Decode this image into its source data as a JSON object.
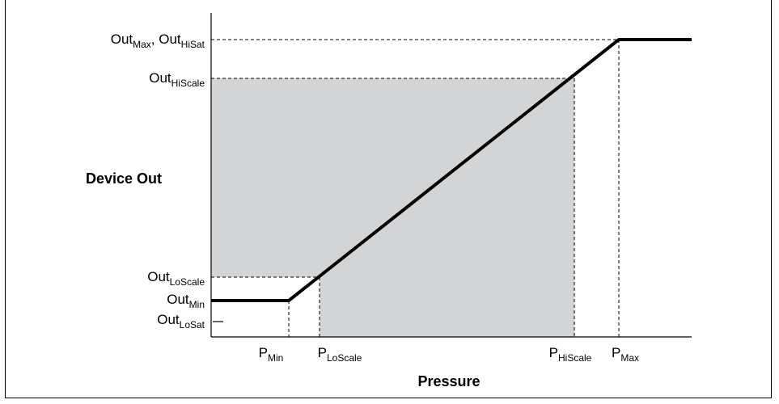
{
  "y_axis_title": "Device Out",
  "x_axis_title": "Pressure",
  "y_labels": {
    "out_max_hisat": {
      "base1": "Out",
      "sub1": "Max",
      "sep": ", ",
      "base2": "Out",
      "sub2": "HiSat"
    },
    "out_hiscale": {
      "base": "Out",
      "sub": "HiScale"
    },
    "out_loscale": {
      "base": "Out",
      "sub": "LoScale"
    },
    "out_min": {
      "base": "Out",
      "sub": "Min"
    },
    "out_losat": {
      "base": "Out",
      "sub": "LoSat"
    }
  },
  "x_labels": {
    "p_min": {
      "base": "P",
      "sub": "Min"
    },
    "p_loscale": {
      "base": "P",
      "sub": "LoScale"
    },
    "p_hiscale": {
      "base": "P",
      "sub": "HiScale"
    },
    "p_max": {
      "base": "P",
      "sub": "Max"
    }
  },
  "colors": {
    "shaded_region": "#d3d4d6",
    "line": "#000000"
  }
}
